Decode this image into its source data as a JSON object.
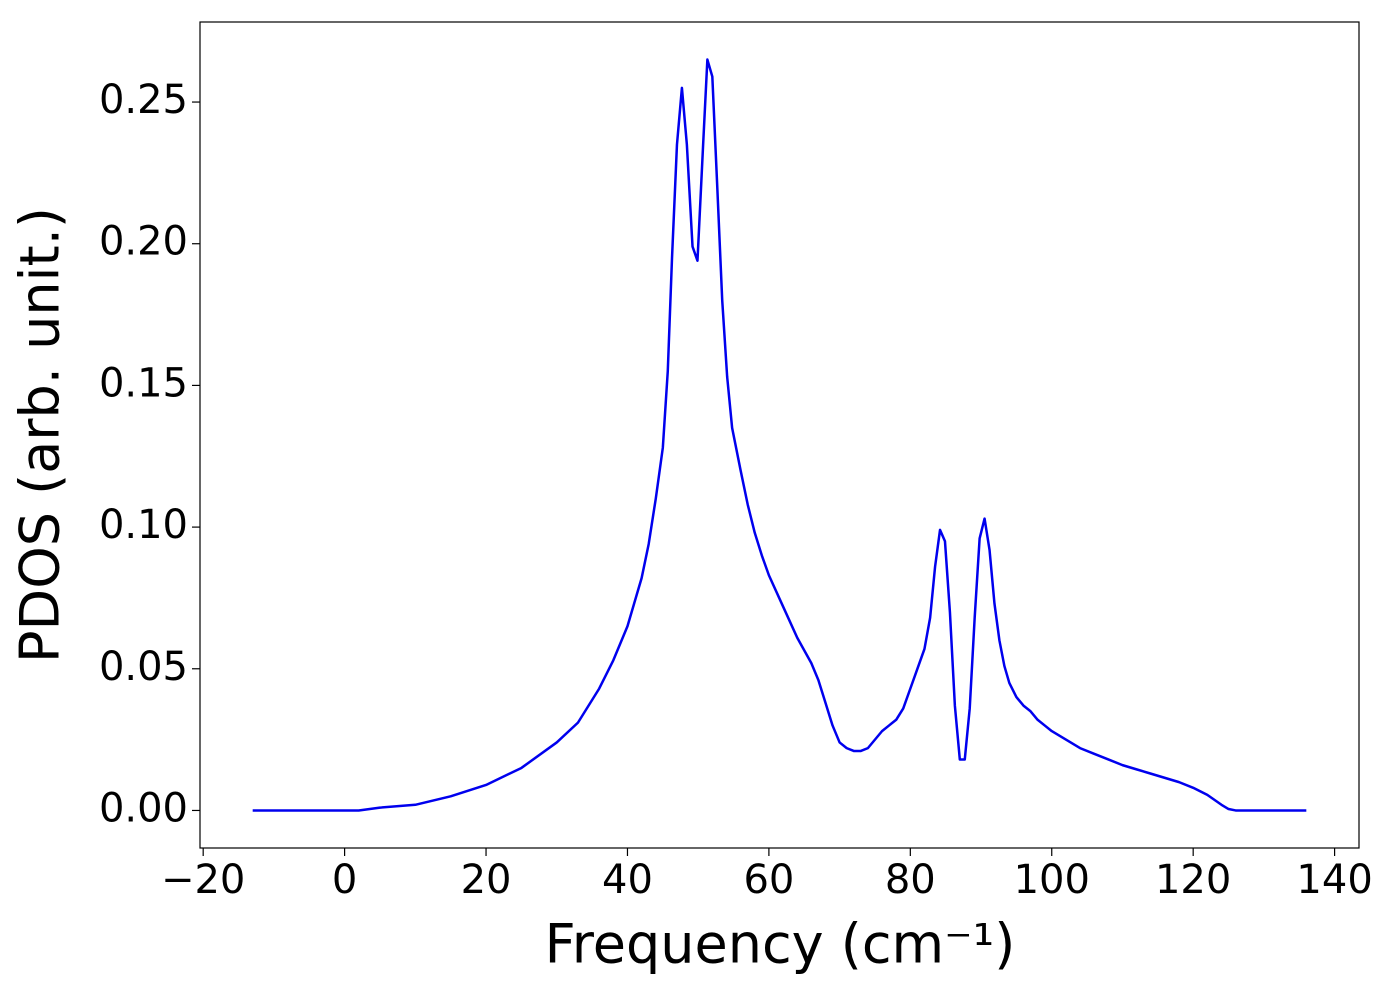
{
  "chart_data": {
    "type": "line",
    "xlabel": "Frequency (cm⁻¹)",
    "ylabel": "PDOS (arb. unit.)",
    "x": [
      -13,
      2,
      5,
      10,
      15,
      20,
      25,
      30,
      33,
      36,
      38,
      40,
      42,
      43,
      44,
      45,
      45.7,
      46.3,
      47,
      47.7,
      48.4,
      49.2,
      49.9,
      50.7,
      51.3,
      52.0,
      52.7,
      53.4,
      54.1,
      54.8,
      56,
      57,
      58,
      59,
      60,
      62,
      64,
      66,
      67,
      68,
      69,
      70,
      71,
      72,
      73,
      74,
      75,
      76,
      77,
      78,
      79,
      80,
      81,
      82,
      82.8,
      83.5,
      84.2,
      84.9,
      85.6,
      86.3,
      87.0,
      87.7,
      88.4,
      89.1,
      89.8,
      90.5,
      91.2,
      91.9,
      92.6,
      93.3,
      94,
      95,
      96,
      97,
      98,
      99,
      100,
      102,
      104,
      106,
      108,
      110,
      112,
      114,
      116,
      118,
      120,
      122,
      124,
      125,
      126,
      136
    ],
    "series": [
      {
        "color": "#0000ee",
        "values": [
          0,
          0,
          0.001,
          0.002,
          0.005,
          0.009,
          0.015,
          0.024,
          0.031,
          0.043,
          0.053,
          0.065,
          0.082,
          0.094,
          0.11,
          0.128,
          0.155,
          0.195,
          0.235,
          0.255,
          0.235,
          0.199,
          0.194,
          0.235,
          0.265,
          0.259,
          0.22,
          0.18,
          0.153,
          0.135,
          0.12,
          0.108,
          0.098,
          0.09,
          0.083,
          0.072,
          0.061,
          0.052,
          0.046,
          0.038,
          0.03,
          0.024,
          0.022,
          0.021,
          0.021,
          0.022,
          0.025,
          0.028,
          0.03,
          0.032,
          0.036,
          0.043,
          0.05,
          0.057,
          0.068,
          0.086,
          0.099,
          0.095,
          0.07,
          0.037,
          0.018,
          0.018,
          0.036,
          0.068,
          0.096,
          0.103,
          0.092,
          0.073,
          0.06,
          0.051,
          0.045,
          0.04,
          0.037,
          0.035,
          0.032,
          0.03,
          0.028,
          0.025,
          0.022,
          0.02,
          0.018,
          0.016,
          0.0145,
          0.013,
          0.0115,
          0.01,
          0.008,
          0.0055,
          0.002,
          0.0005,
          0,
          0
        ]
      }
    ],
    "xlim": [
      -20.45,
      143.45
    ],
    "xticks": [
      {
        "value": -20,
        "label": "−20"
      },
      0,
      20,
      40,
      60,
      80,
      100,
      120,
      140
    ],
    "ylim": [
      -0.01325,
      0.27825
    ],
    "yticks": [
      {
        "value": 0,
        "label": "0.00"
      },
      {
        "value": 0.05,
        "label": "0.05"
      },
      {
        "value": 0.1,
        "label": "0.10"
      },
      {
        "value": 0.15,
        "label": "0.15"
      },
      {
        "value": 0.2,
        "label": "0.20"
      },
      {
        "value": 0.25,
        "label": "0.25"
      }
    ],
    "grid": false
  }
}
